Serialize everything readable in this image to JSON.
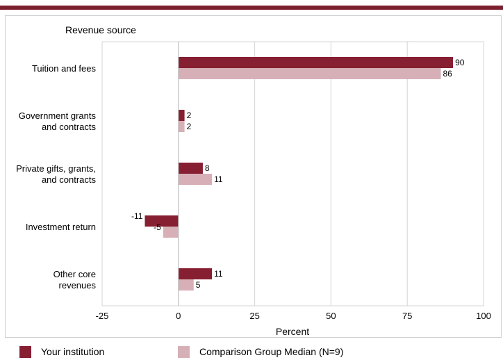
{
  "chart_data": {
    "type": "bar",
    "orientation": "horizontal",
    "title": "",
    "category_axis_title": "Revenue source",
    "xlabel": "Percent",
    "xlim": [
      -25,
      100
    ],
    "xticks": [
      -25,
      0,
      25,
      50,
      75,
      100
    ],
    "grid": true,
    "categories": [
      [
        "Tuition and fees"
      ],
      [
        "Government grants",
        "and contracts"
      ],
      [
        "Private gifts, grants,",
        "and contracts"
      ],
      [
        "Investment return"
      ],
      [
        "Other core",
        "revenues"
      ]
    ],
    "series": [
      {
        "name": "Your institution",
        "color": "#861f31",
        "values": [
          90,
          2,
          8,
          -11,
          11
        ]
      },
      {
        "name": "Comparison Group Median (N=9)",
        "color": "#d7b0b7",
        "values": [
          86,
          2,
          11,
          -5,
          5
        ]
      }
    ],
    "legend_position": "bottom"
  }
}
